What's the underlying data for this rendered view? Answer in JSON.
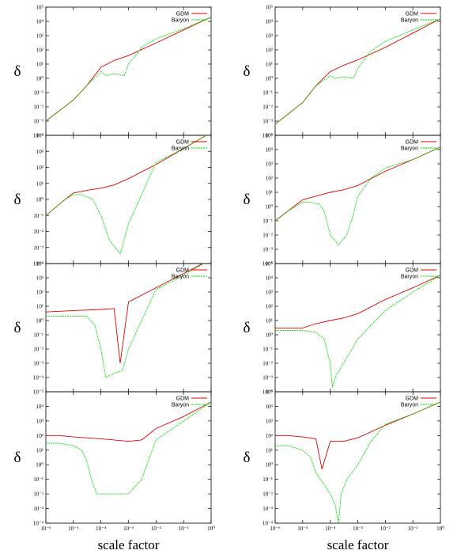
{
  "chart_data": [
    {
      "type": "line",
      "xlabel": "",
      "ylabel": "δ",
      "x_scale": "log",
      "y_scale": "log",
      "xlim": [
        1e-06,
        1
      ],
      "ylim": [
        0.0001,
        100000
      ],
      "x_ticks": [
        "10⁻⁶",
        "10⁻⁵",
        "10⁻⁴",
        "10⁻³",
        "10⁻²",
        "10⁻¹",
        "10⁰"
      ],
      "y_ticks": [
        "10⁻⁴",
        "10⁻³",
        "10⁻²",
        "10⁻¹",
        "10⁰",
        "10¹",
        "10²",
        "10³",
        "10⁴",
        "10⁵"
      ],
      "legend": {
        "position": "top-right",
        "entries": [
          "GDM",
          "Baryon"
        ]
      },
      "series": [
        {
          "name": "GDM",
          "color": "#e00000",
          "x": [
            1e-06,
            1e-05,
            3e-05,
            0.0001,
            0.0003,
            0.001,
            0.01,
            0.1,
            1
          ],
          "y": [
            0.001,
            0.03,
            0.3,
            6,
            18,
            40,
            300,
            2500,
            20000
          ]
        },
        {
          "name": "Baryon",
          "color": "#00dd00",
          "x": [
            1e-06,
            1e-05,
            3e-05,
            0.0001,
            0.00015,
            0.00025,
            0.0004,
            0.0007,
            0.001,
            0.003,
            0.01,
            0.1,
            1
          ],
          "y": [
            0.001,
            0.03,
            0.3,
            3,
            1.5,
            2,
            2,
            1.5,
            10,
            150,
            600,
            3000,
            20000
          ]
        }
      ]
    },
    {
      "type": "line",
      "xlabel": "",
      "ylabel": "δ",
      "x_scale": "log",
      "y_scale": "log",
      "xlim": [
        1e-06,
        1
      ],
      "ylim": [
        0.0001,
        100000
      ],
      "x_ticks": [
        "10⁻⁶",
        "10⁻⁵",
        "10⁻⁴",
        "10⁻³",
        "10⁻²",
        "10⁻¹",
        "10⁰"
      ],
      "y_ticks": [
        "10⁻⁴",
        "10⁻³",
        "10⁻²",
        "10⁻¹",
        "10⁰",
        "10¹",
        "10²",
        "10³",
        "10⁴",
        "10⁵"
      ],
      "legend": {
        "position": "top-right",
        "entries": [
          "GDM",
          "Baryon"
        ]
      },
      "series": [
        {
          "name": "GDM",
          "color": "#e00000",
          "x": [
            1e-06,
            1e-05,
            3e-05,
            0.0001,
            0.0003,
            0.001,
            0.01,
            0.1,
            1
          ],
          "y": [
            0.0006,
            0.02,
            0.3,
            3,
            8,
            20,
            150,
            1500,
            15000
          ]
        },
        {
          "name": "Baryon",
          "color": "#00dd00",
          "x": [
            1e-06,
            1e-05,
            3e-05,
            0.0001,
            0.00015,
            0.00025,
            0.0004,
            0.0007,
            0.001,
            0.003,
            0.01,
            0.1,
            1
          ],
          "y": [
            0.0006,
            0.02,
            0.3,
            1.5,
            1,
            1.2,
            1.2,
            1,
            5,
            80,
            400,
            2500,
            15000
          ]
        }
      ]
    },
    {
      "type": "line",
      "xlabel": "",
      "ylabel": "δ",
      "x_scale": "log",
      "y_scale": "log",
      "xlim": [
        1e-06,
        1
      ],
      "ylim": [
        0.0001,
        10000
      ],
      "x_ticks": [
        "10⁻⁶",
        "10⁻⁵",
        "10⁻⁴",
        "10⁻³",
        "10⁻²",
        "10⁻¹",
        "10⁰"
      ],
      "y_ticks": [
        "10⁻⁴",
        "10⁻³",
        "10⁻²",
        "10⁻¹",
        "10⁰",
        "10¹",
        "10²",
        "10³",
        "10⁴"
      ],
      "legend": {
        "position": "top-right",
        "entries": [
          "GDM",
          "Baryon"
        ]
      },
      "series": [
        {
          "name": "GDM",
          "color": "#e00000",
          "x": [
            1e-06,
            5e-06,
            1e-05,
            4e-05,
            0.0001,
            0.0003,
            0.001,
            0.01,
            0.1,
            1
          ],
          "y": [
            0.1,
            1,
            2.5,
            4,
            5,
            8,
            20,
            150,
            1500,
            15000
          ]
        },
        {
          "name": "Baryon",
          "color": "#00dd00",
          "x": [
            1e-06,
            5e-06,
            1e-05,
            2e-05,
            5e-05,
            0.0001,
            0.0002,
            0.0005,
            0.001,
            0.01,
            0.1,
            1
          ],
          "y": [
            0.1,
            1,
            2,
            2,
            1,
            0.1,
            0.003,
            0.0004,
            0.03,
            200,
            1500,
            15000
          ]
        }
      ]
    },
    {
      "type": "line",
      "xlabel": "",
      "ylabel": "δ",
      "x_scale": "log",
      "y_scale": "log",
      "xlim": [
        1e-06,
        1
      ],
      "ylim": [
        0.0001,
        100000
      ],
      "x_ticks": [
        "10⁻⁶",
        "10⁻⁵",
        "10⁻⁴",
        "10⁻³",
        "10⁻²",
        "10⁻¹",
        "10⁰"
      ],
      "y_ticks": [
        "10⁻⁴",
        "10⁻³",
        "10⁻²",
        "10⁻¹",
        "10⁰",
        "10¹",
        "10²",
        "10³",
        "10⁴",
        "10⁵"
      ],
      "legend": {
        "position": "top-right",
        "entries": [
          "GDM",
          "Baryon"
        ]
      },
      "series": [
        {
          "name": "GDM",
          "color": "#e00000",
          "x": [
            1e-06,
            1e-05,
            0.0001,
            0.0003,
            0.001,
            0.01,
            0.1,
            1
          ],
          "y": [
            0.1,
            3,
            10,
            15,
            30,
            300,
            2000,
            15000
          ]
        },
        {
          "name": "Baryon",
          "color": "#00dd00",
          "x": [
            1e-06,
            3e-06,
            1e-05,
            2e-05,
            4e-05,
            6e-05,
            0.0001,
            0.0002,
            0.0004,
            0.0007,
            0.001,
            0.003,
            0.01,
            0.1,
            1
          ],
          "y": [
            0.1,
            0.5,
            2,
            2,
            1.5,
            0.5,
            0.01,
            0.002,
            0.01,
            0.3,
            5,
            100,
            500,
            2000,
            15000
          ]
        }
      ]
    },
    {
      "type": "line",
      "xlabel": "",
      "ylabel": "δ",
      "x_scale": "log",
      "y_scale": "log",
      "xlim": [
        1e-06,
        1
      ],
      "ylim": [
        1e-05,
        10000
      ],
      "x_ticks": [
        "10⁻⁶",
        "10⁻⁵",
        "10⁻⁴",
        "10⁻³",
        "10⁻²",
        "10⁻¹",
        "10⁰"
      ],
      "y_ticks": [
        "10⁻⁵",
        "10⁻⁴",
        "10⁻³",
        "10⁻²",
        "10⁻¹",
        "10⁰",
        "10¹",
        "10²",
        "10³",
        "10⁴"
      ],
      "legend": {
        "position": "top-right",
        "entries": [
          "GDM",
          "Baryon"
        ]
      },
      "series": [
        {
          "name": "GDM",
          "color": "#e00000",
          "x": [
            1e-06,
            1e-05,
            0.0001,
            0.0003,
            0.0005,
            0.001,
            0.01,
            0.1,
            1
          ],
          "y": [
            4,
            5,
            6,
            7,
            0.001,
            20,
            200,
            2000,
            20000
          ]
        },
        {
          "name": "Baryon",
          "color": "#00dd00",
          "x": [
            1e-06,
            3e-06,
            1e-05,
            3e-05,
            6e-05,
            0.0001,
            0.00015,
            0.0003,
            0.0006,
            0.001,
            0.003,
            0.01,
            0.1,
            1
          ],
          "y": [
            2,
            2,
            2,
            2,
            0.5,
            0.01,
            0.0001,
            0.0002,
            0.0003,
            0.01,
            1,
            150,
            1500,
            20000
          ]
        }
      ]
    },
    {
      "type": "line",
      "xlabel": "",
      "ylabel": "δ",
      "x_scale": "log",
      "y_scale": "log",
      "xlim": [
        1e-06,
        1
      ],
      "ylim": [
        0.0001,
        100000
      ],
      "x_ticks": [
        "10⁻⁶",
        "10⁻⁵",
        "10⁻⁴",
        "10⁻³",
        "10⁻²",
        "10⁻¹",
        "10⁰"
      ],
      "y_ticks": [
        "10⁻⁴",
        "10⁻³",
        "10⁻²",
        "10⁻¹",
        "10⁰",
        "10¹",
        "10²",
        "10³",
        "10⁴",
        "10⁵"
      ],
      "legend": {
        "position": "top-right",
        "entries": [
          "GDM",
          "Baryon"
        ]
      },
      "series": [
        {
          "name": "GDM",
          "color": "#e00000",
          "x": [
            1e-06,
            3e-06,
            1e-05,
            3e-05,
            0.0001,
            0.0003,
            0.001,
            0.01,
            0.1,
            1
          ],
          "y": [
            3,
            3,
            3,
            6,
            10,
            15,
            30,
            300,
            2000,
            15000
          ]
        },
        {
          "name": "Baryon",
          "color": "#00dd00",
          "x": [
            1e-06,
            3e-06,
            1e-05,
            3e-05,
            6e-05,
            0.0001,
            0.00012,
            0.00015,
            0.0003,
            0.0005,
            0.001,
            0.01,
            0.1,
            1
          ],
          "y": [
            2,
            2,
            2,
            1.5,
            0.5,
            0.01,
            0.0002,
            0.001,
            0.01,
            0.05,
            0.5,
            50,
            1000,
            15000
          ]
        }
      ]
    },
    {
      "type": "line",
      "xlabel": "scale factor",
      "ylabel": "δ",
      "x_scale": "log",
      "y_scale": "log",
      "xlim": [
        1e-06,
        1
      ],
      "ylim": [
        0.0001,
        100000
      ],
      "x_ticks": [
        "10⁻⁶",
        "10⁻⁵",
        "10⁻⁴",
        "10⁻³",
        "10⁻²",
        "10⁻¹",
        "10⁰"
      ],
      "y_ticks": [
        "10⁻⁴",
        "10⁻³",
        "10⁻²",
        "10⁻¹",
        "10⁰",
        "10¹",
        "10²",
        "10³",
        "10⁴"
      ],
      "legend": {
        "position": "top-right",
        "entries": [
          "GDM",
          "Baryon"
        ]
      },
      "series": [
        {
          "name": "GDM",
          "color": "#e00000",
          "x": [
            1e-06,
            3e-06,
            1e-05,
            3e-05,
            0.0001,
            0.0003,
            0.001,
            0.003,
            0.01,
            0.1,
            1
          ],
          "y": [
            100,
            100,
            80,
            70,
            60,
            50,
            40,
            50,
            300,
            2000,
            20000
          ]
        },
        {
          "name": "Baryon",
          "color": "#00dd00",
          "x": [
            1e-06,
            3e-06,
            1e-05,
            2e-05,
            3e-05,
            5e-05,
            7e-05,
            0.0001,
            0.00015,
            0.0003,
            0.0006,
            0.001,
            0.003,
            0.01,
            0.1,
            1
          ],
          "y": [
            30,
            30,
            20,
            10,
            2,
            0.05,
            0.01,
            0.01,
            0.01,
            0.01,
            0.01,
            0.01,
            0.1,
            50,
            1000,
            20000
          ]
        }
      ]
    },
    {
      "type": "line",
      "xlabel": "scale factor",
      "ylabel": "δ",
      "x_scale": "log",
      "y_scale": "log",
      "xlim": [
        1e-06,
        1
      ],
      "ylim": [
        0.0001,
        100000
      ],
      "x_ticks": [
        "10⁻⁶",
        "10⁻⁵",
        "10⁻⁴",
        "10⁻³",
        "10⁻²",
        "10⁻¹",
        "10⁰"
      ],
      "y_ticks": [
        "10⁻⁴",
        "10⁻³",
        "10⁻²",
        "10⁻¹",
        "10⁰",
        "10¹",
        "10²",
        "10³",
        "10⁴",
        "10⁵"
      ],
      "legend": {
        "position": "top-right",
        "entries": [
          "GDM",
          "Baryon"
        ]
      },
      "series": [
        {
          "name": "GDM",
          "color": "#e00000",
          "x": [
            1e-06,
            3e-06,
            1e-05,
            3e-05,
            5e-05,
            0.0001,
            0.0003,
            0.001,
            0.01,
            0.1,
            1
          ],
          "y": [
            100,
            100,
            80,
            60,
            0.5,
            40,
            40,
            70,
            500,
            3000,
            20000
          ]
        },
        {
          "name": "Baryon",
          "color": "#00dd00",
          "x": [
            1e-06,
            3e-06,
            1e-05,
            2e-05,
            3e-05,
            0.0001,
            0.00015,
            0.0002,
            0.00025,
            0.0004,
            0.001,
            0.003,
            0.01,
            0.1,
            1
          ],
          "y": [
            20,
            20,
            10,
            3,
            0.3,
            0.01,
            0.002,
            0.0001,
            0.01,
            0.1,
            1,
            40,
            600,
            3000,
            20000
          ]
        }
      ]
    }
  ]
}
